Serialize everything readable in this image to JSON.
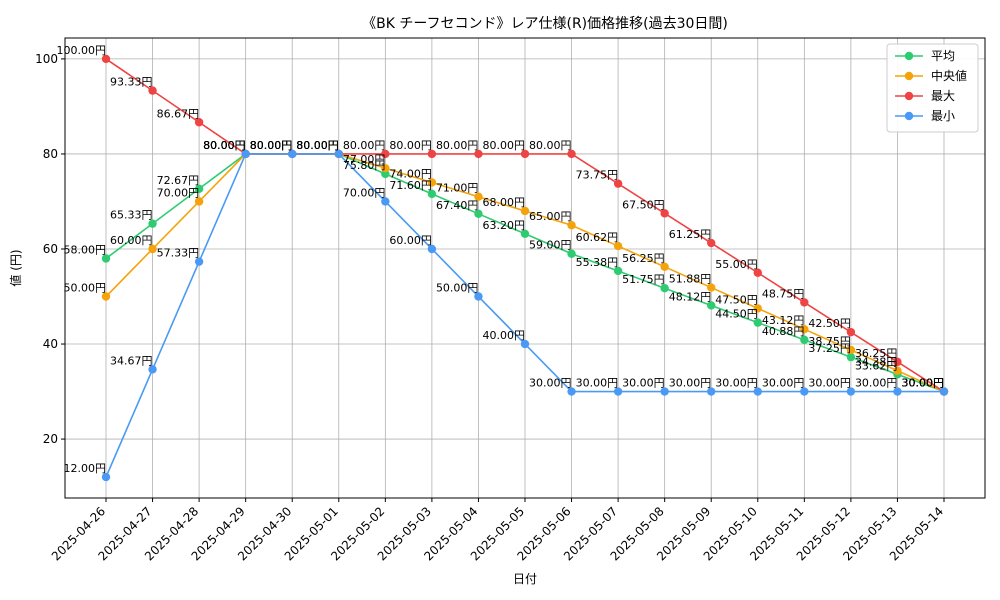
{
  "chart_data": {
    "type": "line",
    "title": "《BK チーフセコンド》レア仕様(R)価格推移(過去30日間)",
    "xlabel": "日付",
    "ylabel": "値 (円)",
    "unit_suffix": "円",
    "x": [
      "2025-04-26",
      "2025-04-27",
      "2025-04-28",
      "2025-04-29",
      "2025-04-30",
      "2025-05-01",
      "2025-05-02",
      "2025-05-03",
      "2025-05-04",
      "2025-05-05",
      "2025-05-06",
      "2025-05-07",
      "2025-05-08",
      "2025-05-09",
      "2025-05-10",
      "2025-05-11",
      "2025-05-12",
      "2025-05-13",
      "2025-05-14"
    ],
    "ylim": [
      7.6,
      104.4
    ],
    "yticks": [
      20,
      40,
      60,
      80,
      100
    ],
    "grid": true,
    "legend_position": "top-right",
    "series": [
      {
        "name": "平均",
        "color": "#2ecc71",
        "values": [
          58.0,
          65.33,
          72.67,
          80.0,
          80.0,
          80.0,
          75.8,
          71.6,
          67.4,
          63.2,
          59.0,
          55.38,
          51.75,
          48.12,
          44.5,
          40.88,
          37.25,
          33.62,
          30.0
        ]
      },
      {
        "name": "中央値",
        "color": "#f5a30a",
        "values": [
          50.0,
          60.0,
          70.0,
          80.0,
          80.0,
          80.0,
          77.0,
          74.0,
          71.0,
          68.0,
          65.0,
          60.62,
          56.25,
          51.88,
          47.5,
          43.12,
          38.75,
          34.38,
          30.0
        ]
      },
      {
        "name": "最大",
        "color": "#ef4444",
        "values": [
          100.0,
          93.33,
          86.67,
          80.0,
          80.0,
          80.0,
          80.0,
          80.0,
          80.0,
          80.0,
          80.0,
          73.75,
          67.5,
          61.25,
          55.0,
          48.75,
          42.5,
          36.25,
          30.0
        ]
      },
      {
        "name": "最小",
        "color": "#4a9af5",
        "values": [
          12.0,
          34.67,
          57.33,
          80.0,
          80.0,
          80.0,
          70.0,
          60.0,
          50.0,
          40.0,
          30.0,
          30.0,
          30.0,
          30.0,
          30.0,
          30.0,
          30.0,
          30.0,
          30.0
        ]
      }
    ]
  }
}
